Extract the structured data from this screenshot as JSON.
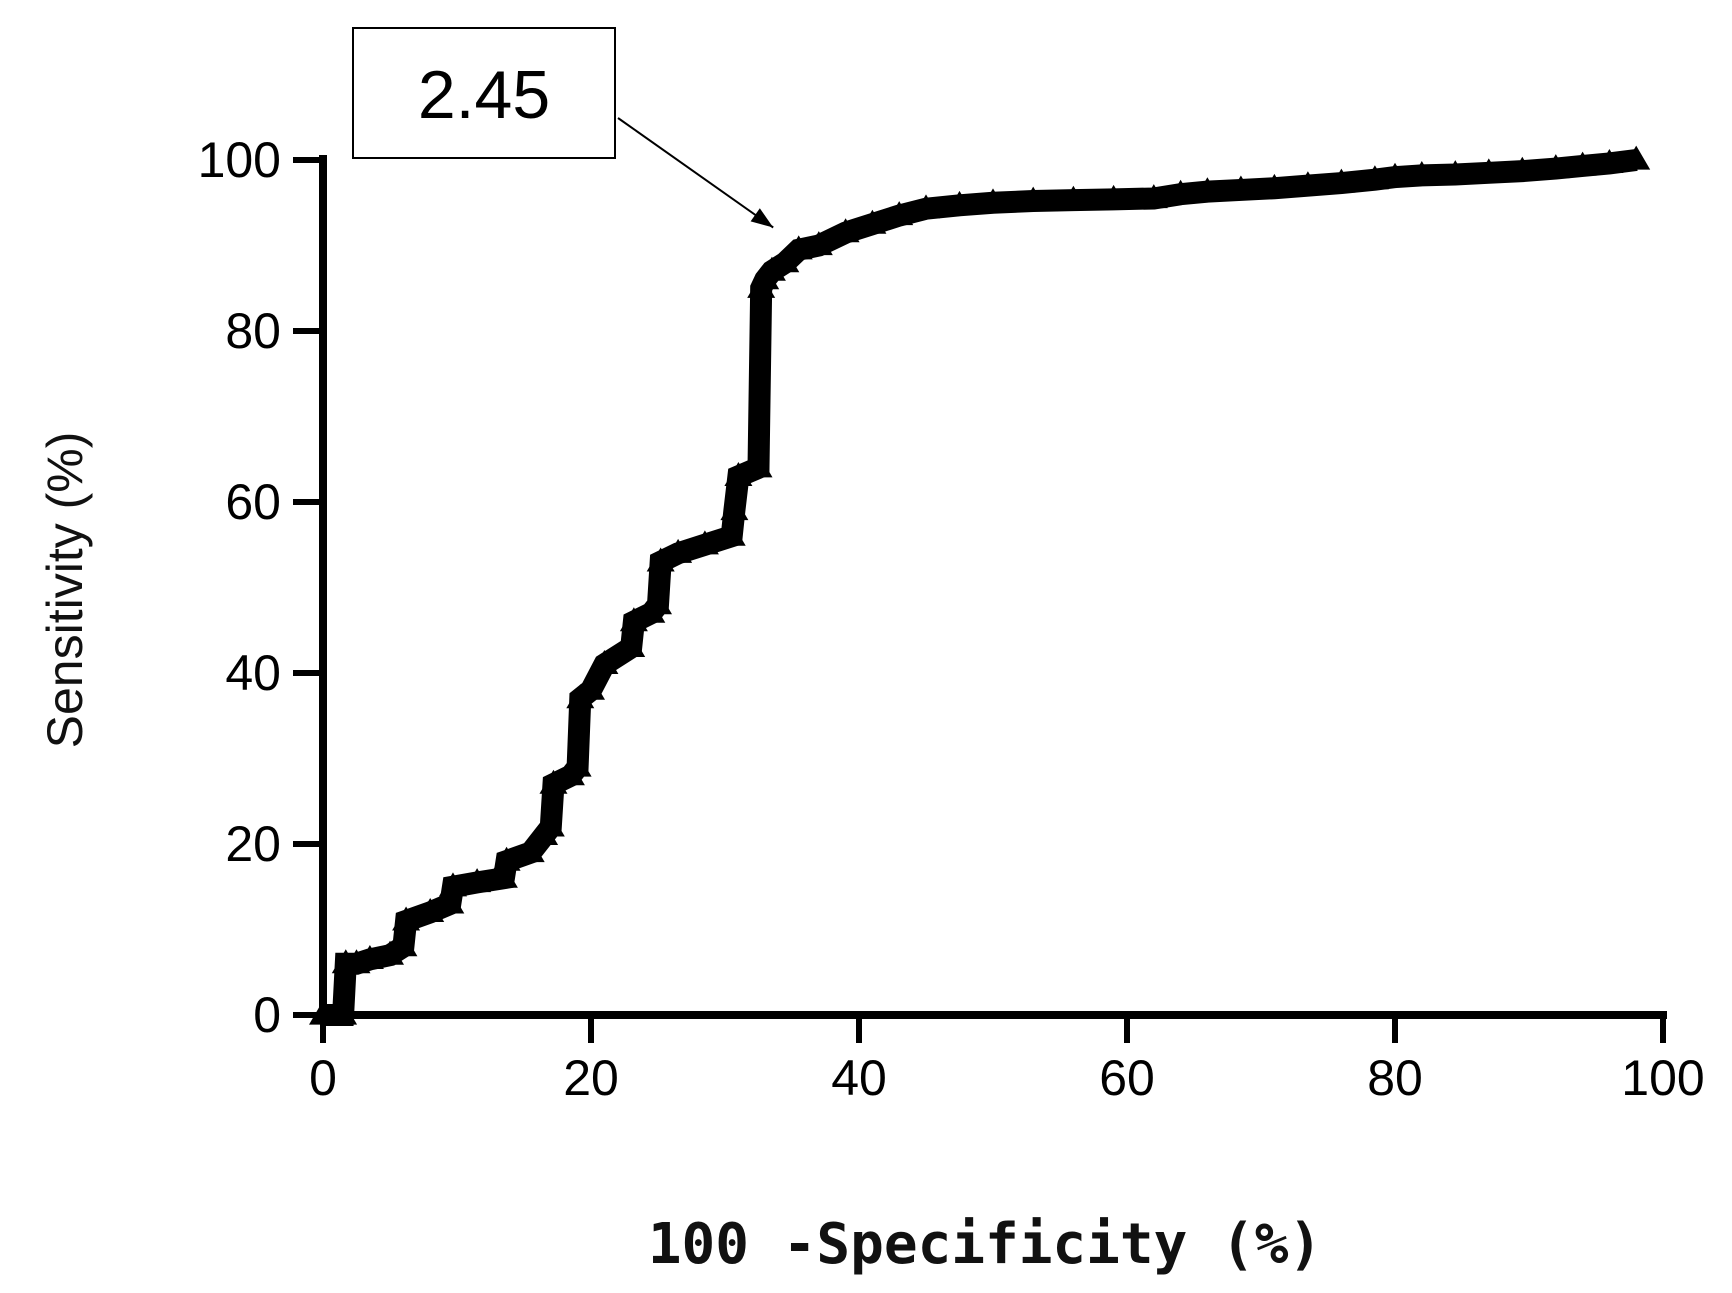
{
  "chart_data": {
    "type": "line",
    "title": "",
    "xlabel": "100 -Specificity (%)",
    "ylabel": "Sensitivity (%)",
    "xlim": [
      0,
      100
    ],
    "ylim": [
      0,
      100
    ],
    "xticks": [
      0,
      20,
      40,
      60,
      80,
      100
    ],
    "yticks": [
      0,
      20,
      40,
      60,
      80,
      100
    ],
    "grid": false,
    "marker": "triangle",
    "color": "#000000",
    "series": [
      {
        "x": [
          0,
          1.5,
          1.7,
          2.5,
          3.5,
          5.0,
          6.0,
          6.2,
          8.0,
          9.5,
          9.7,
          11.5,
          13.5,
          13.7,
          15.5,
          16.5,
          17.0,
          17.2,
          18.5,
          19.0,
          19.2,
          20.0,
          21.0,
          23.0,
          23.2,
          24.5,
          25.0,
          25.2,
          26.5,
          28.5,
          30.5,
          30.7,
          31.0,
          32.5,
          32.7,
          33.0,
          33.5,
          34.5,
          35.5,
          37.0,
          39.0,
          41.0,
          43.0,
          45.0,
          47.5,
          50.0,
          53.0,
          56.0,
          59.0,
          62.0,
          64.0,
          66.0,
          68.5,
          71.0,
          73.5,
          76.0,
          78.5,
          80.0,
          82.0,
          84.5,
          87.0,
          89.5,
          92.0,
          94.0,
          96.0,
          98.0
        ],
        "y": [
          0,
          0,
          6,
          6,
          6.5,
          7,
          8,
          11,
          12,
          13,
          15,
          15.5,
          16,
          18,
          19,
          21,
          22,
          27,
          28,
          29,
          37,
          38,
          41,
          43,
          46,
          47,
          48,
          53,
          54,
          55,
          56,
          59,
          63,
          64,
          85,
          86,
          87,
          88,
          89.5,
          90,
          91.5,
          92.5,
          93.5,
          94.3,
          94.7,
          95,
          95.2,
          95.3,
          95.4,
          95.5,
          96,
          96.3,
          96.5,
          96.7,
          97,
          97.3,
          97.7,
          98,
          98.2,
          98.3,
          98.5,
          98.7,
          99,
          99.3,
          99.6,
          100
        ]
      }
    ],
    "annotation": {
      "text": "2.45",
      "x": 33,
      "y": 90
    }
  }
}
